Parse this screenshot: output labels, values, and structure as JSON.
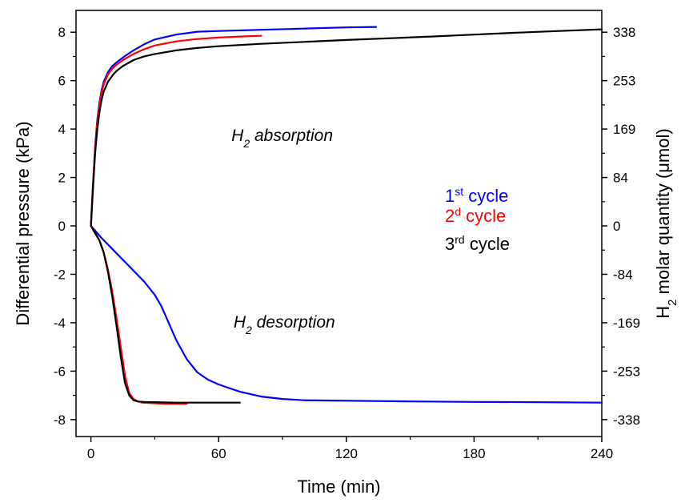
{
  "chart_data": {
    "type": "line",
    "title": "",
    "xlabel": "Time (min)",
    "ylabel": "Differential pressure (kPa)",
    "y2label_parts": {
      "base": "H",
      "sub": "2",
      "rest": " molar quantity (μmol)"
    },
    "xlim": [
      -7,
      240
    ],
    "ylim": [
      -8.7,
      8.9
    ],
    "x_ticks": [
      0,
      60,
      120,
      180,
      240
    ],
    "y_ticks": [
      -8,
      -6,
      -4,
      -2,
      0,
      2,
      4,
      6,
      8
    ],
    "y2_ticks": [
      {
        "at": 8,
        "label": "338"
      },
      {
        "at": 6,
        "label": "253"
      },
      {
        "at": 4,
        "label": "169"
      },
      {
        "at": 2,
        "label": "84"
      },
      {
        "at": 0,
        "label": "0"
      },
      {
        "at": -2,
        "label": "-84"
      },
      {
        "at": -4,
        "label": "-169"
      },
      {
        "at": -6,
        "label": "-253"
      },
      {
        "at": -8,
        "label": "-338"
      }
    ],
    "annotations": [
      {
        "base": "H",
        "sub": "2",
        "rest": " absorption",
        "x": 66,
        "y": 3.5
      },
      {
        "base": "H",
        "sub": "2",
        "rest": " desorption",
        "x": 67,
        "y": -4.2
      }
    ],
    "legend": {
      "position": "right",
      "entries": [
        {
          "base": "1",
          "sup": "st",
          "rest": " cycle",
          "color": "#0000ff"
        },
        {
          "base": "2",
          "sup": "d",
          "rest": " cycle",
          "color": "#ff0000"
        },
        {
          "base": "3",
          "sup": "rd",
          "rest": " cycle",
          "color": "#000000"
        }
      ]
    },
    "series": [
      {
        "role": "absorption",
        "color": "#0000ff",
        "x": [
          0,
          1,
          2,
          3,
          4,
          5,
          6,
          8,
          10,
          12,
          15,
          20,
          25,
          30,
          40,
          50,
          60,
          80,
          100,
          120,
          134
        ],
        "y": [
          0,
          1.8,
          3.3,
          4.4,
          5.1,
          5.6,
          5.95,
          6.35,
          6.6,
          6.75,
          6.95,
          7.25,
          7.5,
          7.7,
          7.9,
          8.02,
          8.05,
          8.1,
          8.15,
          8.2,
          8.22
        ]
      },
      {
        "role": "absorption",
        "color": "#ff0000",
        "x": [
          0,
          1,
          2,
          3,
          4,
          5,
          6,
          8,
          10,
          12,
          15,
          20,
          25,
          30,
          40,
          50,
          60,
          70,
          80
        ],
        "y": [
          0,
          1.7,
          3.2,
          4.3,
          5.0,
          5.5,
          5.85,
          6.25,
          6.5,
          6.65,
          6.85,
          7.1,
          7.3,
          7.45,
          7.62,
          7.72,
          7.78,
          7.82,
          7.85
        ]
      },
      {
        "role": "absorption",
        "color": "#000000",
        "x": [
          0,
          1,
          2,
          3,
          4,
          5,
          6,
          8,
          10,
          12,
          15,
          20,
          25,
          30,
          40,
          50,
          60,
          80,
          100,
          120,
          140,
          160,
          180,
          200,
          220,
          240
        ],
        "y": [
          0,
          1.6,
          3.0,
          4.0,
          4.7,
          5.2,
          5.55,
          5.95,
          6.2,
          6.4,
          6.6,
          6.85,
          7.0,
          7.1,
          7.25,
          7.35,
          7.42,
          7.52,
          7.6,
          7.68,
          7.75,
          7.82,
          7.9,
          7.98,
          8.05,
          8.12
        ]
      },
      {
        "role": "desorption",
        "color": "#0000ff",
        "x": [
          0,
          5,
          10,
          15,
          20,
          25,
          30,
          33,
          36,
          40,
          45,
          50,
          55,
          60,
          70,
          80,
          90,
          100,
          120,
          150,
          180,
          210,
          240
        ],
        "y": [
          0,
          -0.5,
          -0.95,
          -1.4,
          -1.85,
          -2.3,
          -2.85,
          -3.3,
          -3.9,
          -4.7,
          -5.5,
          -6.05,
          -6.35,
          -6.55,
          -6.85,
          -7.05,
          -7.15,
          -7.2,
          -7.22,
          -7.25,
          -7.27,
          -7.28,
          -7.3
        ]
      },
      {
        "role": "desorption",
        "color": "#ff0000",
        "x": [
          0,
          2,
          4,
          6,
          8,
          10,
          12,
          14,
          16,
          18,
          20,
          22,
          24,
          28,
          35,
          45
        ],
        "y": [
          0,
          -0.3,
          -0.6,
          -1.1,
          -1.8,
          -2.7,
          -3.8,
          -5.0,
          -6.2,
          -6.9,
          -7.15,
          -7.25,
          -7.3,
          -7.32,
          -7.35,
          -7.35
        ]
      },
      {
        "role": "desorption",
        "color": "#000000",
        "x": [
          0,
          2,
          4,
          6,
          8,
          10,
          12,
          14,
          16,
          18,
          20,
          22,
          25,
          30,
          40,
          50,
          60,
          70
        ],
        "y": [
          0,
          -0.3,
          -0.6,
          -1.1,
          -1.9,
          -2.9,
          -4.1,
          -5.4,
          -6.5,
          -7.0,
          -7.2,
          -7.25,
          -7.27,
          -7.28,
          -7.3,
          -7.3,
          -7.3,
          -7.3
        ]
      }
    ]
  }
}
